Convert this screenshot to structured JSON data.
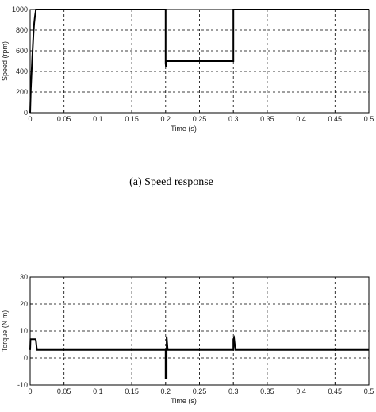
{
  "chart_data": [
    {
      "type": "line",
      "xlabel": "Time (s)",
      "ylabel": "Speed (rpm)",
      "xlim": [
        0,
        0.5
      ],
      "ylim": [
        0,
        1000
      ],
      "grid": true,
      "xticks": [
        "0",
        "0.05",
        "0.1",
        "0.15",
        "0.2",
        "0.25",
        "0.3",
        "0.35",
        "0.4",
        "0.45",
        "0.5"
      ],
      "yticks": [
        "0",
        "200",
        "400",
        "600",
        "800",
        "1000"
      ],
      "x": [
        0,
        0.001,
        0.002,
        0.003,
        0.004,
        0.005,
        0.006,
        0.007,
        0.008,
        0.0085,
        0.2,
        0.2,
        0.2005,
        0.201,
        0.202,
        0.3,
        0.3,
        0.302,
        0.5
      ],
      "y": [
        0,
        230,
        380,
        520,
        650,
        780,
        870,
        930,
        975,
        1000,
        1000,
        480,
        440,
        500,
        500,
        500,
        1000,
        1000,
        1000
      ]
    },
    {
      "type": "line",
      "xlabel": "Time (s)",
      "ylabel": "Torque (N m)",
      "xlim": [
        0,
        0.5
      ],
      "ylim": [
        -10,
        30
      ],
      "grid": true,
      "xticks": [
        "0",
        "0.05",
        "0.1",
        "0.15",
        "0.2",
        "0.25",
        "0.3",
        "0.35",
        "0.4",
        "0.45",
        "0.5"
      ],
      "yticks": [
        "-10",
        "0",
        "10",
        "20",
        "30"
      ],
      "x": [
        0,
        0.0005,
        0.008,
        0.0085,
        0.01,
        0.011,
        0.2,
        0.2,
        0.2015,
        0.2015,
        0.203,
        0.205,
        0.3,
        0.3,
        0.301,
        0.303,
        0.305,
        0.5
      ],
      "y": [
        3,
        7,
        7,
        6.5,
        3,
        3,
        3,
        -7.5,
        -7.5,
        8,
        3,
        3,
        3,
        7,
        7.5,
        3,
        3,
        3
      ]
    }
  ],
  "caption": "(a)  Speed response"
}
